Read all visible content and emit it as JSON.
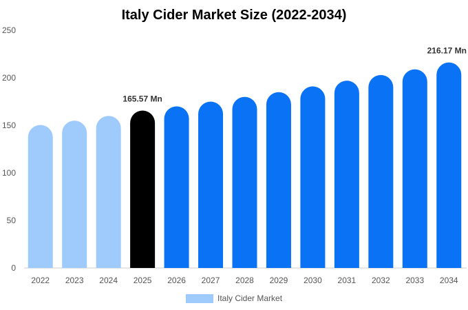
{
  "chart_data": {
    "type": "bar",
    "title": "Italy Cider Market Size (2022-2034)",
    "xlabel": "",
    "ylabel": "",
    "categories": [
      "2022",
      "2023",
      "2024",
      "2025",
      "2026",
      "2027",
      "2028",
      "2029",
      "2030",
      "2031",
      "2032",
      "2033",
      "2034"
    ],
    "series": [
      {
        "name": "Italy Cider Market",
        "values": [
          150.5,
          155,
          160,
          165.57,
          170,
          175,
          180,
          185,
          191,
          197,
          203,
          209,
          216.17
        ]
      }
    ],
    "ylim": [
      0,
      250
    ],
    "yticks": [
      0,
      50,
      100,
      150,
      200,
      250
    ],
    "data_labels": [
      {
        "index": 3,
        "text": "165.57 Mn"
      },
      {
        "index": 12,
        "text": "216.17 Mn"
      }
    ],
    "colors": {
      "historical": "#9ecbfc",
      "base_year": "#000000",
      "forecast": "#0a73f5"
    },
    "legend_position": "bottom",
    "grid": false
  }
}
